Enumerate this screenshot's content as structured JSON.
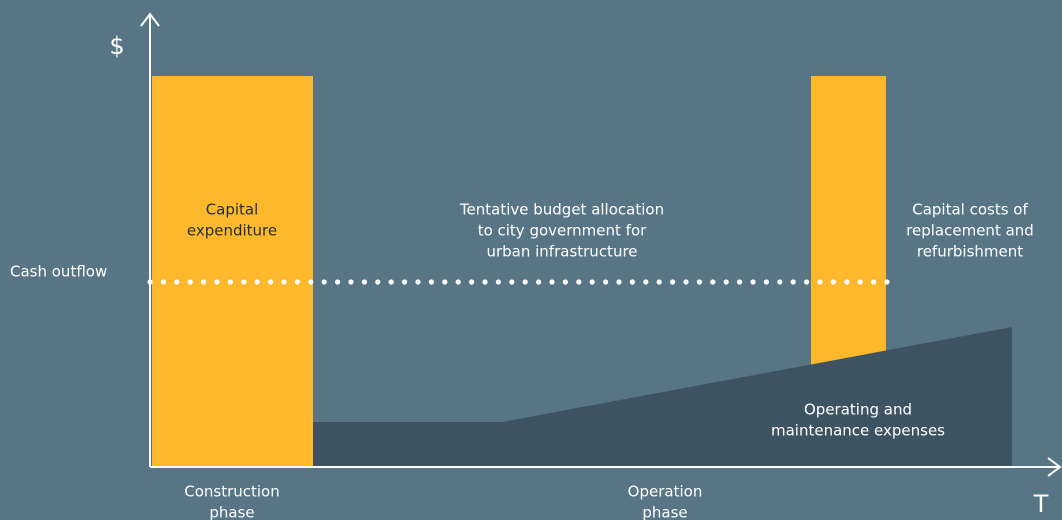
{
  "axes": {
    "y_label": "$",
    "x_label": "T",
    "level_label": "Cash outflow"
  },
  "labels": {
    "capital": [
      "Capital",
      "expenditure"
    ],
    "budget": [
      "Tentative budget allocation",
      "to city government for",
      "urban infrastructure"
    ],
    "replacement": [
      "Capital costs of",
      "replacement and",
      "refurbishment"
    ],
    "operating": [
      "Operating and",
      "maintenance expenses"
    ],
    "construction_phase": [
      "Construction",
      "phase"
    ],
    "operation_phase": [
      "Operation",
      "phase"
    ]
  }
}
